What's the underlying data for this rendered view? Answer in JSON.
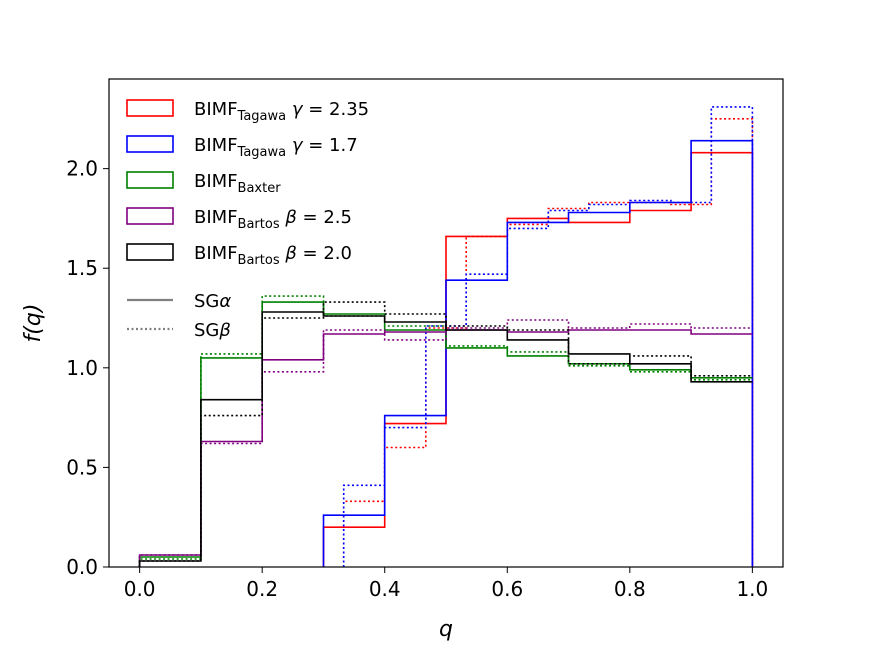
{
  "chart_data": {
    "type": "step-histogram",
    "xlabel": "q",
    "ylabel": "f(q)",
    "xlim": [
      -0.05,
      1.05
    ],
    "ylim": [
      0.0,
      2.45
    ],
    "xticks": [
      0.0,
      0.2,
      0.4,
      0.6,
      0.8,
      1.0
    ],
    "xtick_labels": [
      "0.0",
      "0.2",
      "0.4",
      "0.6",
      "0.8",
      "1.0"
    ],
    "yticks": [
      0.0,
      0.5,
      1.0,
      1.5,
      2.0
    ],
    "ytick_labels": [
      "0.0",
      "0.5",
      "1.0",
      "1.5",
      "2.0"
    ],
    "grid": false,
    "legend_position": "upper-left",
    "legend": [
      {
        "name": "tagawa235",
        "color": "#ff0000",
        "main": "BIMF",
        "sub": "Tagawa",
        "param": "γ",
        "value": " = 2.35"
      },
      {
        "name": "tagawa17",
        "color": "#0000ff",
        "main": "BIMF",
        "sub": "Tagawa",
        "param": "γ",
        "value": " = 1.7"
      },
      {
        "name": "baxter",
        "color": "#008000",
        "main": "BIMF",
        "sub": "Baxter",
        "param": "",
        "value": ""
      },
      {
        "name": "bartos25",
        "color": "#800080",
        "main": "BIMF",
        "sub": "Bartos",
        "param": "β",
        "value": " = 2.5"
      },
      {
        "name": "bartos20",
        "color": "#000000",
        "main": "BIMF",
        "sub": "Bartos",
        "param": "β",
        "value": " = 2.0"
      }
    ],
    "style_legend": [
      {
        "name": "sg-alpha",
        "style": "solid",
        "color": "#808080",
        "label": "SG",
        "greek": "α"
      },
      {
        "name": "sg-beta",
        "style": "dotted",
        "color": "#808080",
        "label": "SG",
        "greek": "β"
      }
    ],
    "series": [
      {
        "name": "tagawa235-alpha",
        "color": "#ff0000",
        "style": "solid",
        "edges": [
          0.3,
          0.4,
          0.5,
          0.6,
          0.7,
          0.8,
          0.9,
          1.0
        ],
        "values": [
          0.2,
          0.72,
          1.66,
          1.75,
          1.73,
          1.79,
          2.08
        ]
      },
      {
        "name": "tagawa235-beta",
        "color": "#ff0000",
        "style": "dotted",
        "edges": [
          0.333,
          0.4,
          0.467,
          0.533,
          0.6,
          0.667,
          0.733,
          0.8,
          0.867,
          0.933,
          1.0
        ],
        "values": [
          0.33,
          0.6,
          1.2,
          1.66,
          1.72,
          1.8,
          1.83,
          1.83,
          1.82,
          2.25
        ]
      },
      {
        "name": "tagawa17-alpha",
        "color": "#0000ff",
        "style": "solid",
        "edges": [
          0.3,
          0.4,
          0.5,
          0.6,
          0.7,
          0.8,
          0.9,
          1.0
        ],
        "values": [
          0.26,
          0.76,
          1.44,
          1.73,
          1.78,
          1.83,
          2.14
        ]
      },
      {
        "name": "tagawa17-beta",
        "color": "#0000ff",
        "style": "dotted",
        "edges": [
          0.333,
          0.4,
          0.467,
          0.533,
          0.6,
          0.667,
          0.733,
          0.8,
          0.867,
          0.933,
          1.0
        ],
        "values": [
          0.41,
          0.7,
          1.21,
          1.47,
          1.7,
          1.79,
          1.82,
          1.84,
          1.83,
          2.31
        ]
      },
      {
        "name": "baxter-alpha",
        "color": "#008000",
        "style": "solid",
        "edges": [
          0.0,
          0.1,
          0.2,
          0.3,
          0.4,
          0.5,
          0.6,
          0.7,
          0.8,
          0.9,
          1.0
        ],
        "values": [
          0.05,
          1.05,
          1.33,
          1.27,
          1.19,
          1.1,
          1.06,
          1.02,
          0.99,
          0.95,
          0.95
        ]
      },
      {
        "name": "baxter-beta",
        "color": "#008000",
        "style": "dotted",
        "edges": [
          0.0,
          0.1,
          0.2,
          0.3,
          0.4,
          0.5,
          0.6,
          0.7,
          0.8,
          0.9,
          1.0
        ],
        "values": [
          0.04,
          1.07,
          1.36,
          1.26,
          1.21,
          1.11,
          1.08,
          1.01,
          0.98,
          0.94,
          0.94
        ]
      },
      {
        "name": "bartos25-alpha",
        "color": "#800080",
        "style": "solid",
        "edges": [
          0.0,
          0.1,
          0.2,
          0.3,
          0.4,
          0.5,
          0.6,
          0.7,
          0.8,
          0.9,
          1.0
        ],
        "values": [
          0.06,
          0.63,
          1.04,
          1.17,
          1.18,
          1.19,
          1.18,
          1.19,
          1.19,
          1.17,
          1.17
        ]
      },
      {
        "name": "bartos25-beta",
        "color": "#800080",
        "style": "dotted",
        "edges": [
          0.0,
          0.1,
          0.2,
          0.3,
          0.4,
          0.5,
          0.6,
          0.7,
          0.8,
          0.9,
          1.0
        ],
        "values": [
          0.06,
          0.62,
          0.98,
          1.19,
          1.14,
          1.2,
          1.24,
          1.2,
          1.22,
          1.2,
          1.2
        ]
      },
      {
        "name": "bartos20-alpha",
        "color": "#000000",
        "style": "solid",
        "edges": [
          0.0,
          0.1,
          0.2,
          0.3,
          0.4,
          0.5,
          0.6,
          0.7,
          0.8,
          0.9,
          1.0
        ],
        "values": [
          0.03,
          0.84,
          1.28,
          1.26,
          1.23,
          1.19,
          1.14,
          1.07,
          1.02,
          0.93,
          0.93
        ]
      },
      {
        "name": "bartos20-beta",
        "color": "#000000",
        "style": "dotted",
        "edges": [
          0.0,
          0.1,
          0.2,
          0.3,
          0.4,
          0.5,
          0.6,
          0.7,
          0.8,
          0.9,
          1.0
        ],
        "values": [
          0.03,
          0.76,
          1.25,
          1.33,
          1.27,
          1.21,
          1.19,
          1.02,
          1.06,
          0.96,
          0.96
        ]
      }
    ]
  }
}
